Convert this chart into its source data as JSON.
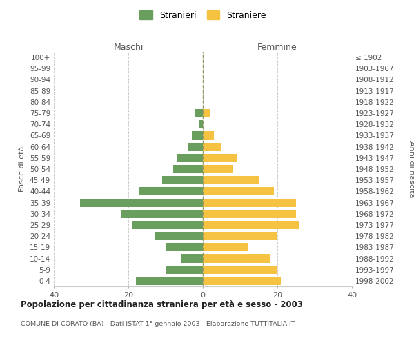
{
  "age_groups": [
    "100+",
    "95-99",
    "90-94",
    "85-89",
    "80-84",
    "75-79",
    "70-74",
    "65-69",
    "60-64",
    "55-59",
    "50-54",
    "45-49",
    "40-44",
    "35-39",
    "30-34",
    "25-29",
    "20-24",
    "15-19",
    "10-14",
    "5-9",
    "0-4"
  ],
  "birth_years": [
    "≤ 1902",
    "1903-1907",
    "1908-1912",
    "1913-1917",
    "1918-1922",
    "1923-1927",
    "1928-1932",
    "1933-1937",
    "1938-1942",
    "1943-1947",
    "1948-1952",
    "1953-1957",
    "1958-1962",
    "1963-1967",
    "1968-1972",
    "1973-1977",
    "1978-1982",
    "1983-1987",
    "1988-1992",
    "1993-1997",
    "1998-2002"
  ],
  "maschi": [
    0,
    0,
    0,
    0,
    0,
    2,
    1,
    3,
    4,
    7,
    8,
    11,
    17,
    33,
    22,
    19,
    13,
    10,
    6,
    10,
    18
  ],
  "femmine": [
    0,
    0,
    0,
    0,
    0,
    2,
    0,
    3,
    5,
    9,
    8,
    15,
    19,
    25,
    25,
    26,
    20,
    12,
    18,
    20,
    21
  ],
  "maschi_color": "#6a9e5e",
  "femmine_color": "#f5c242",
  "background_color": "#ffffff",
  "grid_color": "#cccccc",
  "title": "Popolazione per cittadinanza straniera per età e sesso - 2003",
  "subtitle": "COMUNE DI CORATO (BA) - Dati ISTAT 1° gennaio 2003 - Elaborazione TUTTITALIA.IT",
  "xlabel_left": "Maschi",
  "xlabel_right": "Femmine",
  "ylabel_left": "Fasce di età",
  "ylabel_right": "Anni di nascita",
  "legend_maschi": "Stranieri",
  "legend_femmine": "Straniere",
  "xlim": 40,
  "dpi": 100
}
